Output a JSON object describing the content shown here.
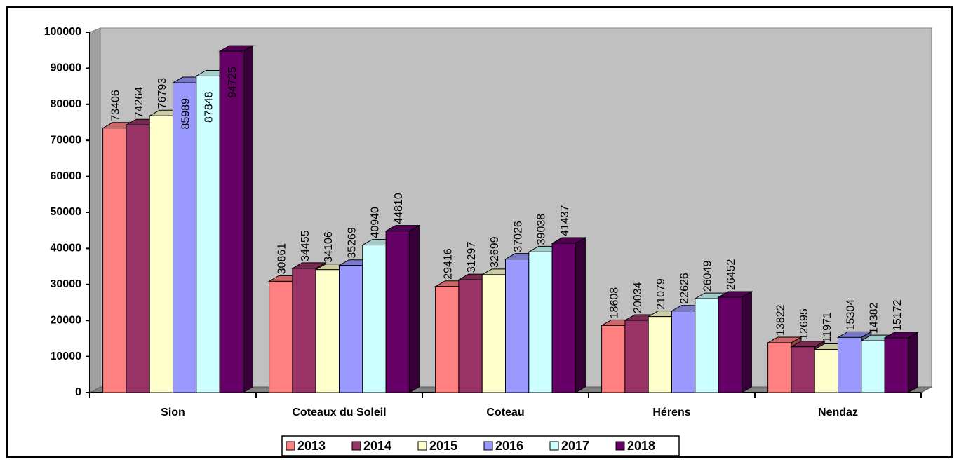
{
  "chart_data": {
    "type": "bar3d",
    "categories": [
      "Sion",
      "Coteaux du Soleil",
      "Coteau",
      "Hérens",
      "Nendaz"
    ],
    "series": [
      {
        "name": "2013",
        "color": "#FF8080",
        "values": [
          73406,
          30861,
          29416,
          18608,
          13822
        ]
      },
      {
        "name": "2014",
        "color": "#993366",
        "values": [
          74264,
          34455,
          31297,
          20034,
          12695
        ]
      },
      {
        "name": "2015",
        "color": "#FFFFCC",
        "values": [
          76793,
          34106,
          32699,
          21079,
          11971
        ]
      },
      {
        "name": "2016",
        "color": "#9999FF",
        "values": [
          85989,
          35269,
          37026,
          22626,
          15304
        ]
      },
      {
        "name": "2017",
        "color": "#CCFFFF",
        "values": [
          87848,
          40940,
          39038,
          26049,
          14382
        ]
      },
      {
        "name": "2018",
        "color": "#660066",
        "values": [
          94725,
          44810,
          41437,
          26452,
          15172
        ]
      }
    ],
    "ylim": [
      0,
      100000
    ],
    "yticks": [
      0,
      10000,
      20000,
      30000,
      40000,
      50000,
      60000,
      70000,
      80000,
      90000,
      100000
    ],
    "legend": "bottom"
  }
}
